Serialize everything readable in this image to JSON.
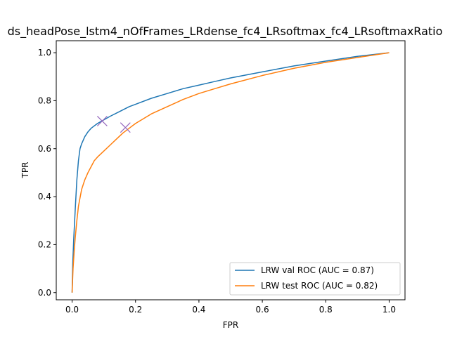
{
  "chart_data": {
    "type": "line",
    "title": "ds_headPose_lstm4_nOfFrames_LRdense_fc4_LRsoftmax_fc4_LRsoftmaxRatio",
    "xlabel": "FPR",
    "ylabel": "TPR",
    "xlim": [
      -0.05,
      1.05
    ],
    "ylim": [
      -0.03,
      1.05
    ],
    "xticks": [
      0.0,
      0.2,
      0.4,
      0.6,
      0.8,
      1.0
    ],
    "xtick_labels": [
      "0.0",
      "0.2",
      "0.4",
      "0.6",
      "0.8",
      "1.0"
    ],
    "yticks": [
      0.0,
      0.2,
      0.4,
      0.6,
      0.8,
      1.0
    ],
    "ytick_labels": [
      "0.0",
      "0.2",
      "0.4",
      "0.6",
      "0.8",
      "1.0"
    ],
    "grid": false,
    "legend_position": "lower-right",
    "series": [
      {
        "name": "LRW val ROC (AUC = 0.87)",
        "color": "#1f77b4",
        "x": [
          0.0,
          0.002,
          0.005,
          0.01,
          0.015,
          0.02,
          0.025,
          0.03,
          0.04,
          0.05,
          0.06,
          0.08,
          0.1,
          0.12,
          0.15,
          0.18,
          0.2,
          0.25,
          0.3,
          0.35,
          0.4,
          0.45,
          0.5,
          0.6,
          0.7,
          0.8,
          0.9,
          1.0
        ],
        "y": [
          0.0,
          0.12,
          0.22,
          0.35,
          0.47,
          0.55,
          0.6,
          0.62,
          0.65,
          0.67,
          0.685,
          0.705,
          0.72,
          0.735,
          0.755,
          0.775,
          0.785,
          0.81,
          0.83,
          0.85,
          0.865,
          0.88,
          0.895,
          0.92,
          0.945,
          0.965,
          0.985,
          1.0
        ]
      },
      {
        "name": "LRW test ROC (AUC = 0.82)",
        "color": "#ff7f0e",
        "x": [
          0.0,
          0.003,
          0.007,
          0.01,
          0.015,
          0.02,
          0.03,
          0.04,
          0.05,
          0.06,
          0.07,
          0.08,
          0.1,
          0.12,
          0.14,
          0.16,
          0.18,
          0.2,
          0.25,
          0.3,
          0.35,
          0.4,
          0.45,
          0.5,
          0.6,
          0.7,
          0.8,
          0.9,
          1.0
        ],
        "y": [
          0.0,
          0.1,
          0.18,
          0.23,
          0.3,
          0.36,
          0.43,
          0.47,
          0.5,
          0.525,
          0.55,
          0.565,
          0.59,
          0.615,
          0.64,
          0.665,
          0.685,
          0.705,
          0.745,
          0.775,
          0.805,
          0.83,
          0.85,
          0.87,
          0.905,
          0.935,
          0.96,
          0.98,
          1.0
        ]
      }
    ],
    "markers": [
      {
        "x": 0.095,
        "y": 0.715,
        "color": "#9467bd",
        "symbol": "x"
      },
      {
        "x": 0.168,
        "y": 0.688,
        "color": "#9467bd",
        "symbol": "x"
      }
    ]
  }
}
